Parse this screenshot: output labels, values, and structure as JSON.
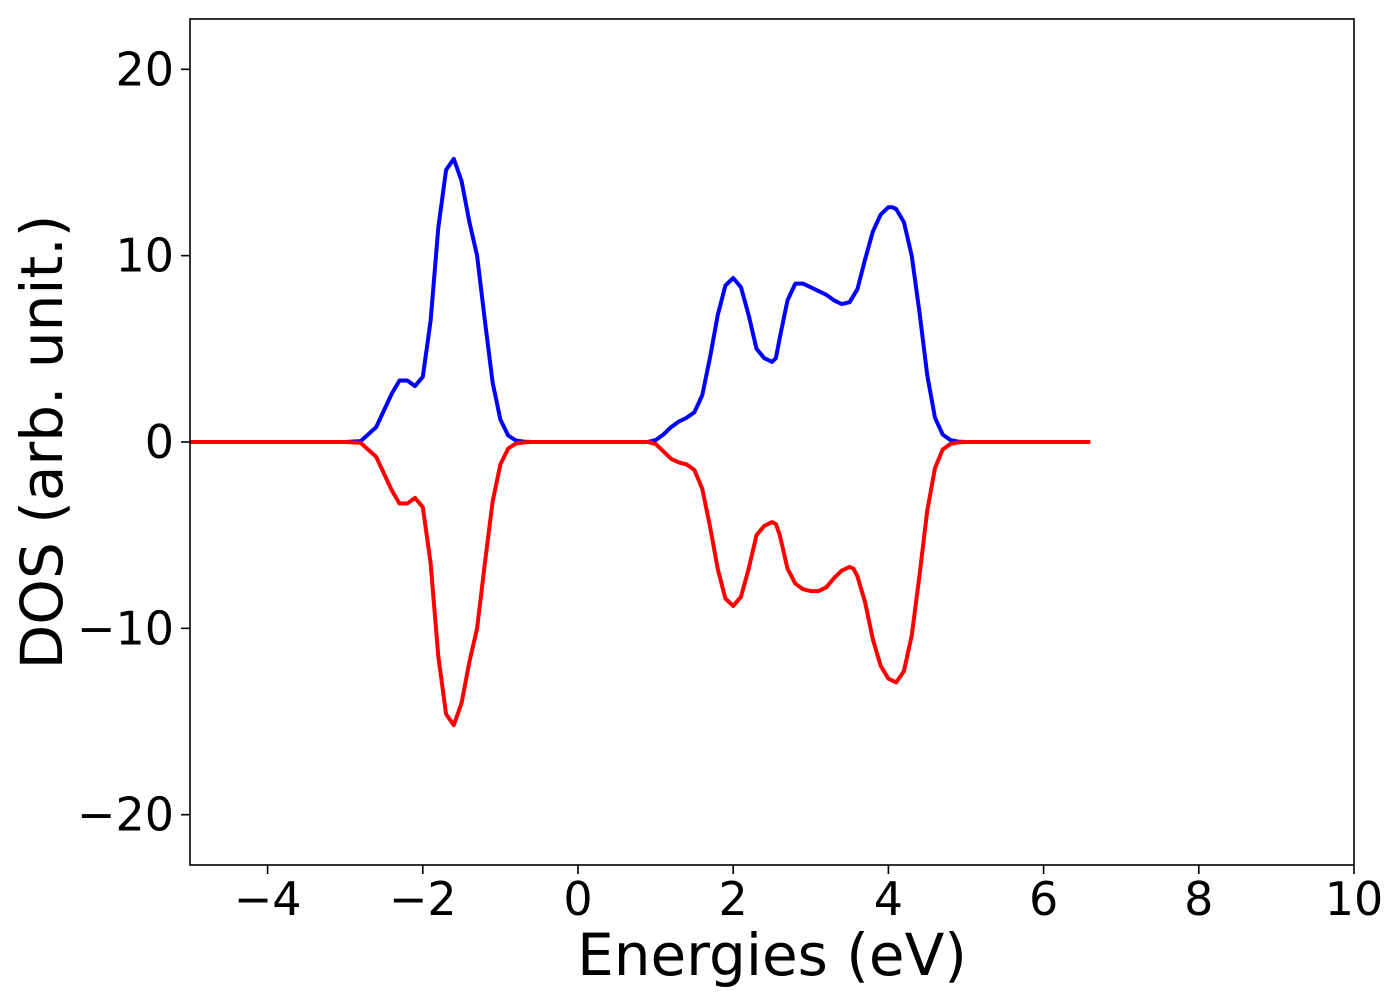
{
  "chart_data": {
    "type": "line",
    "title": "",
    "xlabel": "Energies (eV)",
    "ylabel": "DOS (arb. unit.)",
    "xlim": [
      -5,
      10
    ],
    "ylim": [
      -22.7,
      22.7
    ],
    "xticks": [
      -4,
      -2,
      0,
      2,
      4,
      6,
      8,
      10
    ],
    "yticks": [
      -20,
      -10,
      0,
      10,
      20
    ],
    "xtick_labels": [
      "−4",
      "−2",
      "0",
      "2",
      "4",
      "6",
      "8",
      "10"
    ],
    "ytick_labels": [
      "−20",
      "−10",
      "0",
      "10",
      "20"
    ],
    "grid": false,
    "legend": "none",
    "series": [
      {
        "color": "#0000ff",
        "x": [
          -5.0,
          -3.0,
          -2.8,
          -2.6,
          -2.4,
          -2.3,
          -2.2,
          -2.1,
          -2.0,
          -1.9,
          -1.8,
          -1.7,
          -1.6,
          -1.5,
          -1.4,
          -1.3,
          -1.2,
          -1.1,
          -1.0,
          -0.9,
          -0.8,
          -0.7,
          -0.6,
          -0.5,
          0.0,
          0.5,
          0.9,
          1.0,
          1.1,
          1.2,
          1.3,
          1.4,
          1.5,
          1.6,
          1.7,
          1.8,
          1.9,
          2.0,
          2.1,
          2.2,
          2.3,
          2.4,
          2.5,
          2.55,
          2.6,
          2.7,
          2.8,
          2.9,
          3.0,
          3.1,
          3.2,
          3.3,
          3.4,
          3.5,
          3.6,
          3.7,
          3.8,
          3.9,
          4.0,
          4.05,
          4.1,
          4.2,
          4.3,
          4.4,
          4.5,
          4.6,
          4.7,
          4.8,
          4.9,
          5.0,
          6.6
        ],
        "values": [
          0,
          0,
          0.05,
          0.8,
          2.6,
          3.3,
          3.3,
          3.0,
          3.5,
          6.5,
          11.5,
          14.6,
          15.2,
          14.0,
          11.8,
          10.0,
          6.5,
          3.2,
          1.2,
          0.35,
          0.08,
          0.02,
          0,
          0,
          0,
          0,
          0,
          0.1,
          0.4,
          0.8,
          1.1,
          1.3,
          1.6,
          2.5,
          4.5,
          6.8,
          8.4,
          8.8,
          8.3,
          6.8,
          5.0,
          4.5,
          4.3,
          4.5,
          5.6,
          7.6,
          8.5,
          8.5,
          8.3,
          8.1,
          7.9,
          7.6,
          7.4,
          7.5,
          8.2,
          9.8,
          11.3,
          12.2,
          12.6,
          12.6,
          12.5,
          11.8,
          10.0,
          7.0,
          3.6,
          1.3,
          0.4,
          0.1,
          0.02,
          0,
          0
        ]
      },
      {
        "color": "#ff0000",
        "x": [
          -5.0,
          -3.0,
          -2.8,
          -2.6,
          -2.4,
          -2.3,
          -2.2,
          -2.1,
          -2.0,
          -1.9,
          -1.8,
          -1.7,
          -1.6,
          -1.5,
          -1.4,
          -1.3,
          -1.2,
          -1.1,
          -1.0,
          -0.9,
          -0.8,
          -0.7,
          -0.6,
          -0.5,
          0.0,
          0.5,
          0.9,
          1.0,
          1.1,
          1.2,
          1.3,
          1.4,
          1.5,
          1.6,
          1.7,
          1.8,
          1.9,
          2.0,
          2.1,
          2.2,
          2.3,
          2.4,
          2.5,
          2.55,
          2.6,
          2.7,
          2.8,
          2.9,
          3.0,
          3.1,
          3.2,
          3.3,
          3.4,
          3.5,
          3.55,
          3.6,
          3.7,
          3.8,
          3.9,
          4.0,
          4.1,
          4.2,
          4.3,
          4.4,
          4.5,
          4.6,
          4.7,
          4.8,
          4.9,
          5.0,
          6.6
        ],
        "values": [
          0,
          0,
          -0.05,
          -0.8,
          -2.6,
          -3.3,
          -3.3,
          -3.0,
          -3.5,
          -6.5,
          -11.5,
          -14.6,
          -15.2,
          -14.0,
          -11.8,
          -10.0,
          -6.5,
          -3.2,
          -1.2,
          -0.35,
          -0.08,
          -0.02,
          0,
          0,
          0,
          0,
          0,
          -0.1,
          -0.5,
          -0.9,
          -1.1,
          -1.2,
          -1.5,
          -2.5,
          -4.5,
          -6.8,
          -8.4,
          -8.8,
          -8.3,
          -6.8,
          -5.0,
          -4.5,
          -4.3,
          -4.4,
          -5.0,
          -6.8,
          -7.6,
          -7.9,
          -8.0,
          -8.0,
          -7.8,
          -7.3,
          -6.9,
          -6.7,
          -6.8,
          -7.2,
          -8.6,
          -10.6,
          -12.0,
          -12.7,
          -12.9,
          -12.3,
          -10.4,
          -7.2,
          -3.7,
          -1.4,
          -0.4,
          -0.1,
          -0.02,
          0,
          0
        ]
      }
    ]
  }
}
